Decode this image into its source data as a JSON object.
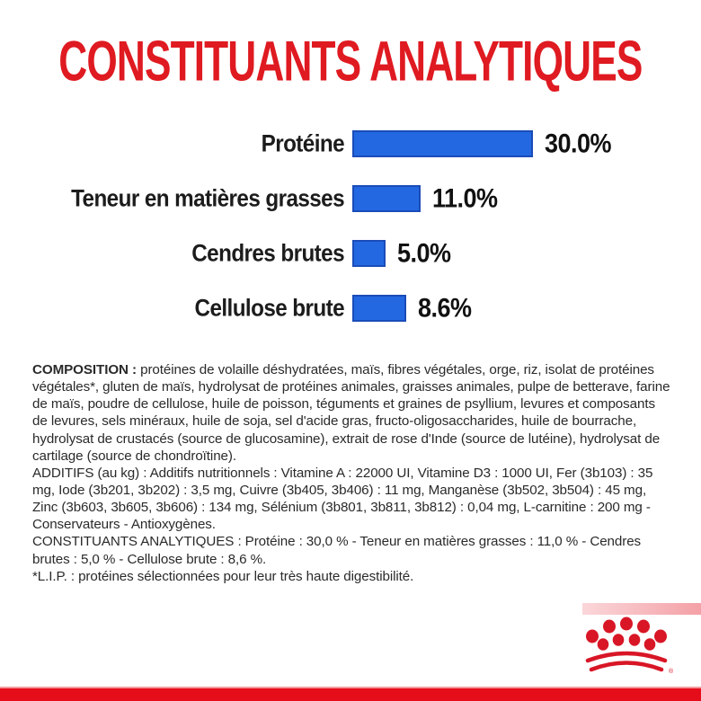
{
  "colors": {
    "accent_red": "#df1a21",
    "bar_blue": "#2368e1",
    "bar_border_blue": "#1a4cb8",
    "bottom_bar_red": "#e60d1a",
    "body_text": "#2a2a2a"
  },
  "title": "CONSTITUANTS ANALYTIQUES",
  "chart_data": {
    "type": "bar",
    "orientation": "horizontal",
    "categories": [
      "Protéine",
      "Teneur en matières grasses",
      "Cendres brutes",
      "Cellulose brute"
    ],
    "values": [
      30.0,
      11.0,
      5.0,
      8.6
    ],
    "value_labels": [
      "30.0%",
      "11.0%",
      "5.0%",
      "8.6%"
    ],
    "unit": "%",
    "xlim": [
      0,
      30
    ],
    "bar_color": "#2368e1",
    "grid": false,
    "legend": false
  },
  "composition": {
    "label": "COMPOSITION : ",
    "text": "protéines de volaille déshydratées, maïs, fibres végétales, orge, riz, isolat de protéines végétales*, gluten de maïs, hydrolysat de protéines animales, graisses animales, pulpe de betterave, farine de maïs, poudre de cellulose, huile de poisson, téguments et graines de psyllium, levures et composants de levures, sels minéraux, huile de soja, sel d'acide gras, fructo-oligosaccharides, huile de bourrache, hydrolysat de crustacés (source de glucosamine), extrait de rose d'Inde (source de lutéine), hydrolysat de cartilage (source de chondroïtine)."
  },
  "additifs": {
    "text": "ADDITIFS (au kg) : Additifs nutritionnels : Vitamine A : 22000 UI, Vitamine D3 : 1000 UI, Fer (3b103) : 35 mg, Iode (3b201, 3b202) : 3,5 mg, Cuivre (3b405, 3b406) : 11 mg, Manganèse (3b502, 3b504) : 45 mg, Zinc (3b603, 3b605, 3b606) : 134 mg, Sélénium (3b801, 3b811, 3b812) : 0,04 mg, L-carnitine : 200 mg - Conservateurs - Antioxygènes."
  },
  "constituants_resume": {
    "text": "CONSTITUANTS ANALYTIQUES : Protéine : 30,0 % - Teneur en matières grasses : 11,0 % - Cendres brutes : 5,0 % - Cellulose brute : 8,6 %."
  },
  "lip_note": {
    "text": "*L.I.P. : protéines sélectionnées pour leur très haute digestibilité."
  },
  "footer": {
    "brand_logo": "royal-canin-crown",
    "registered_mark": "®"
  }
}
